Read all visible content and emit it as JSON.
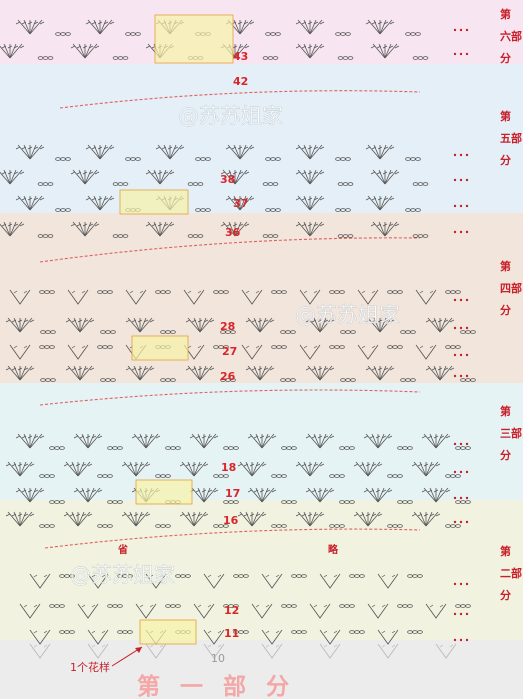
{
  "sections": [
    {
      "id": "part6",
      "label": "第六部分",
      "bg": "#f7e6f1"
    },
    {
      "id": "part5",
      "label": "第五部分",
      "bg": "#e4eff7"
    },
    {
      "id": "part4",
      "label": "第四部分",
      "bg": "#f1e5dc"
    },
    {
      "id": "part3",
      "label": "第三部分",
      "bg": "#e6f3f5"
    },
    {
      "id": "part2",
      "label": "第二部分",
      "bg": "#f1f3e0"
    },
    {
      "id": "part1",
      "label": "第一部分",
      "bg": "#ececec"
    }
  ],
  "row_numbers": [
    "43",
    "42",
    "38",
    "37",
    "36",
    "28",
    "27",
    "26",
    "18",
    "17",
    "16",
    "12",
    "11",
    "10"
  ],
  "watermark": "@苏苏姐家",
  "omitted": [
    "省",
    "略"
  ],
  "pattern_label": "1个花样",
  "title": "第 一 部 分",
  "colors": {
    "stitch": "#555555",
    "row_number": "#d8262b",
    "highlight_fill": "#f7f2a6",
    "highlight_stroke": "#e2a23a",
    "dash": "#e06060"
  }
}
